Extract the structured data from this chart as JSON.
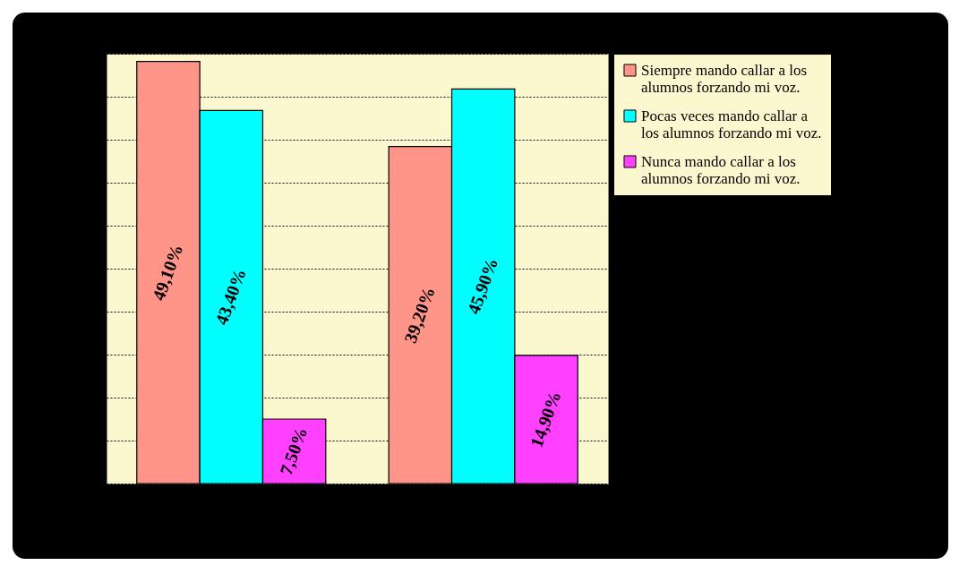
{
  "chart_data": {
    "type": "bar",
    "categories": [
      null,
      null
    ],
    "series": [
      {
        "name": "Siempre mando callar a los alumnos forzando mi voz.",
        "color": "#ff9488",
        "values": [
          49.1,
          39.2
        ],
        "value_labels": [
          "49,10%",
          "39,20%"
        ]
      },
      {
        "name": "Pocas veces mando callar a los alumnos forzando mi voz.",
        "color": "#00ffff",
        "values": [
          43.4,
          45.9
        ],
        "value_labels": [
          "43,40%",
          "45,90%"
        ]
      },
      {
        "name": "Nunca mando callar a los alumnos forzando mi voz.",
        "color": "#ff40ff",
        "values": [
          7.5,
          14.9
        ],
        "value_labels": [
          "7,50%",
          "14,90%"
        ]
      }
    ],
    "ylim": [
      0,
      50
    ],
    "yticks": [
      0,
      5,
      10,
      15,
      20,
      25,
      30,
      35,
      40,
      45,
      50
    ],
    "tick_labels": false,
    "grid": "y",
    "legend": "right"
  }
}
